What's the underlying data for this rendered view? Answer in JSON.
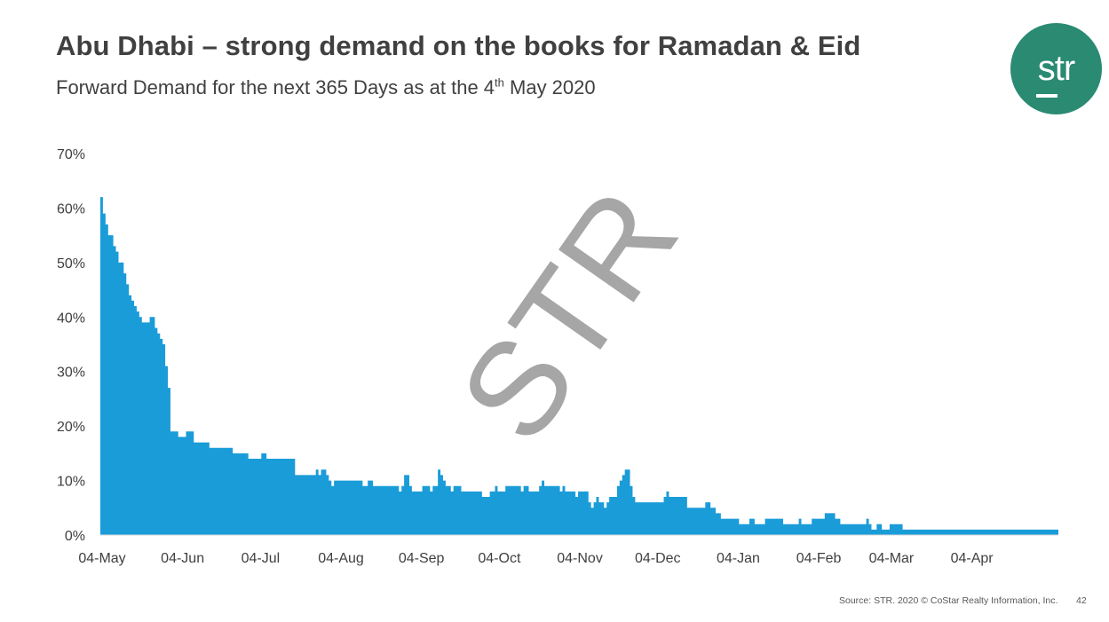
{
  "header": {
    "title": "Abu Dhabi – strong demand on the books for Ramadan & Eid",
    "subtitle_prefix": "Forward Demand for the next 365 Days as at the 4",
    "subtitle_sup": "th",
    "subtitle_suffix": " May 2020"
  },
  "logo": {
    "text": "str",
    "color": "#2a8a72"
  },
  "footer": {
    "source": "Source: STR. 2020 © CoStar Realty Information, Inc.",
    "page_number": "42"
  },
  "watermark": "STR",
  "chart_data": {
    "type": "area",
    "title": "",
    "xlabel": "",
    "ylabel": "",
    "ylim": [
      0,
      70
    ],
    "y_ticks": [
      "0%",
      "10%",
      "20%",
      "30%",
      "40%",
      "50%",
      "60%",
      "70%"
    ],
    "x_tick_labels": [
      "04-May",
      "04-Jun",
      "04-Jul",
      "04-Aug",
      "04-Sep",
      "04-Oct",
      "04-Nov",
      "04-Dec",
      "04-Jan",
      "04-Feb",
      "04-Mar",
      "04-Apr"
    ],
    "x_tick_day_index": [
      0,
      31,
      61,
      92,
      123,
      153,
      184,
      214,
      245,
      276,
      304,
      335
    ],
    "grid": false,
    "legend": "none",
    "series_color": "#1a9cd8",
    "series": [
      {
        "name": "",
        "unit": "%",
        "values": [
          62,
          59,
          57,
          55,
          55,
          53,
          52,
          50,
          50,
          48,
          46,
          44,
          43,
          42,
          41,
          40,
          39,
          39,
          39,
          40,
          40,
          38,
          37,
          36,
          35,
          31,
          27,
          19,
          19,
          19,
          18,
          18,
          18,
          19,
          19,
          19,
          17,
          17,
          17,
          17,
          17,
          17,
          16,
          16,
          16,
          16,
          16,
          16,
          16,
          16,
          16,
          15,
          15,
          15,
          15,
          15,
          15,
          14,
          14,
          14,
          14,
          14,
          15,
          15,
          14,
          14,
          14,
          14,
          14,
          14,
          14,
          14,
          14,
          14,
          14,
          11,
          11,
          11,
          11,
          11,
          11,
          11,
          11,
          12,
          11,
          12,
          12,
          11,
          10,
          9,
          10,
          10,
          10,
          10,
          10,
          10,
          10,
          10,
          10,
          10,
          10,
          9,
          9,
          10,
          10,
          9,
          9,
          9,
          9,
          9,
          9,
          9,
          9,
          9,
          9,
          8,
          9,
          11,
          11,
          9,
          8,
          8,
          8,
          8,
          9,
          9,
          9,
          8,
          9,
          9,
          12,
          11,
          10,
          9,
          9,
          8,
          9,
          9,
          9,
          8,
          8,
          8,
          8,
          8,
          8,
          8,
          8,
          7,
          7,
          7,
          8,
          8,
          9,
          8,
          8,
          8,
          9,
          9,
          9,
          9,
          9,
          9,
          8,
          9,
          9,
          8,
          8,
          8,
          8,
          9,
          10,
          9,
          9,
          9,
          9,
          9,
          9,
          8,
          9,
          8,
          8,
          8,
          8,
          7,
          8,
          8,
          8,
          8,
          6,
          5,
          6,
          7,
          6,
          6,
          5,
          6,
          7,
          7,
          7,
          9,
          10,
          11,
          12,
          12,
          9,
          7,
          6,
          6,
          6,
          6,
          6,
          6,
          6,
          6,
          6,
          6,
          6,
          7,
          8,
          7,
          7,
          7,
          7,
          7,
          7,
          7,
          5,
          5,
          5,
          5,
          5,
          5,
          5,
          6,
          6,
          5,
          5,
          4,
          4,
          3,
          3,
          3,
          3,
          3,
          3,
          3,
          2,
          2,
          2,
          2,
          3,
          3,
          2,
          2,
          2,
          2,
          3,
          3,
          3,
          3,
          3,
          3,
          3,
          2,
          2,
          2,
          2,
          2,
          2,
          3,
          2,
          2,
          2,
          2,
          3,
          3,
          3,
          3,
          3,
          4,
          4,
          4,
          4,
          3,
          3,
          2,
          2,
          2,
          2,
          2,
          2,
          2,
          2,
          2,
          2,
          3,
          2,
          1,
          1,
          2,
          2,
          1,
          1,
          1,
          2,
          2,
          2,
          2,
          2,
          1,
          1,
          1,
          1,
          1,
          1,
          1,
          1,
          1,
          1,
          1,
          1,
          1,
          1,
          1,
          1,
          1,
          1,
          1,
          1,
          1,
          1,
          1,
          1,
          1,
          1,
          1,
          1,
          1,
          1,
          1,
          1,
          1,
          1,
          1,
          1,
          1,
          1,
          1,
          1,
          1,
          1,
          1,
          1,
          1,
          1,
          1,
          1,
          1,
          1,
          1,
          1,
          1,
          1,
          1,
          1,
          1,
          1,
          1,
          1
        ]
      }
    ]
  }
}
